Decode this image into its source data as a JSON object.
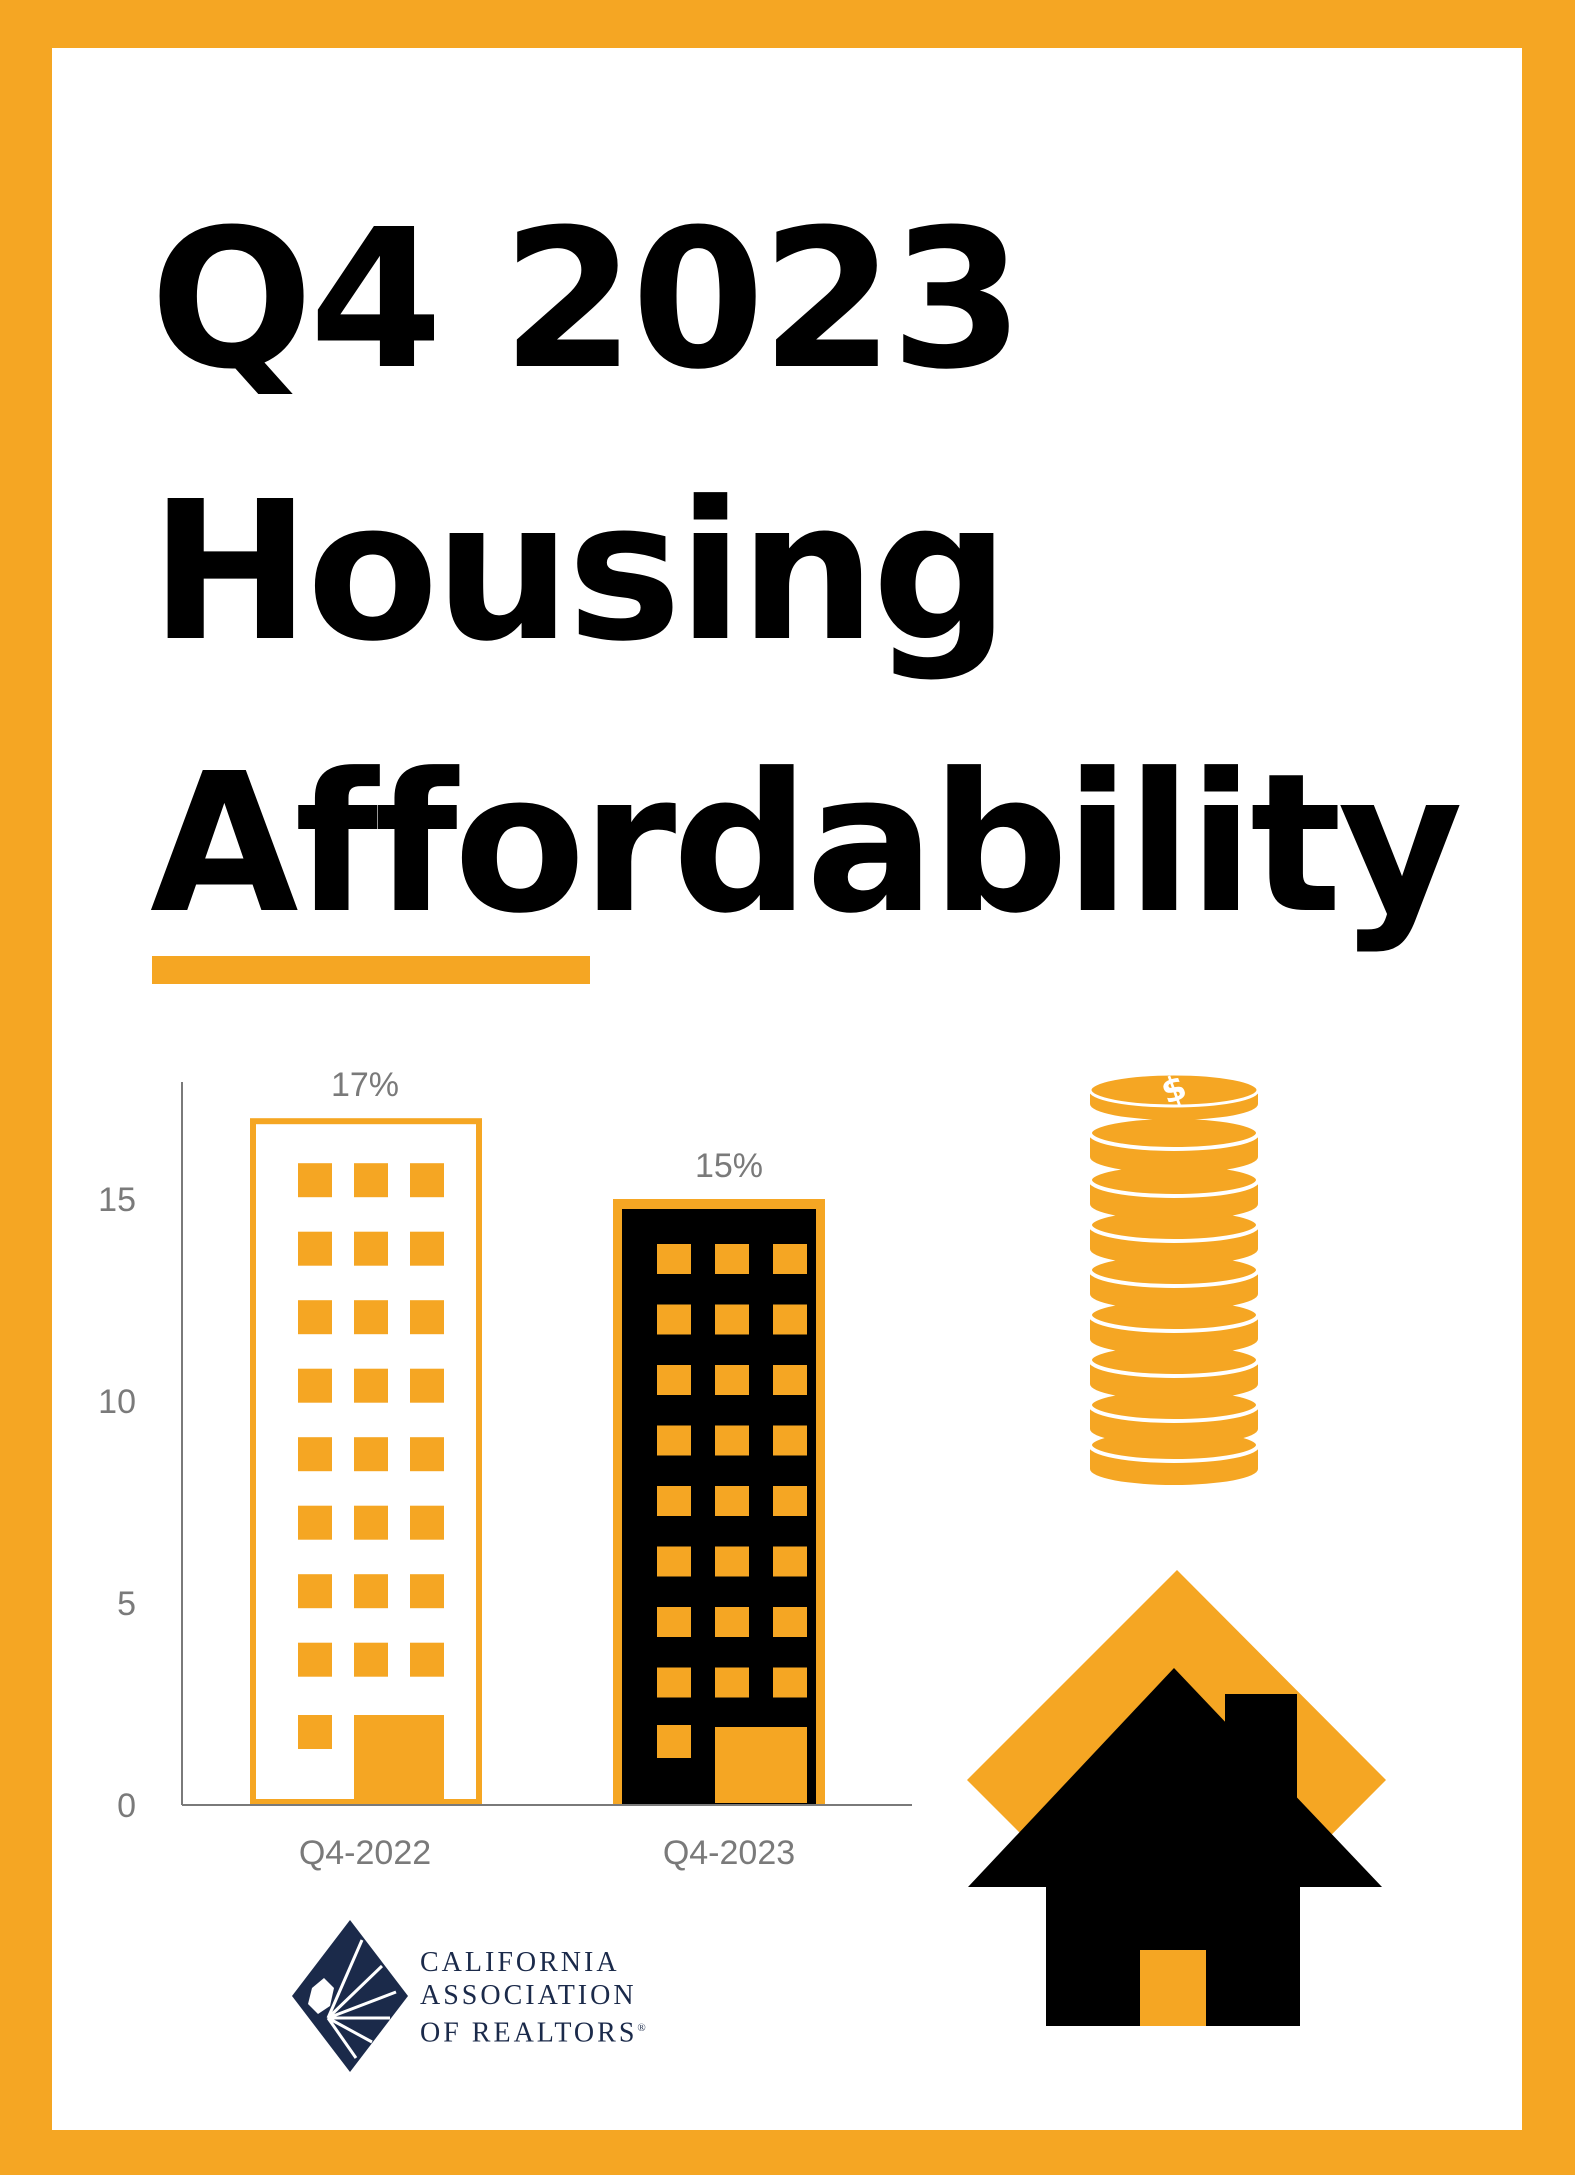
{
  "title": {
    "line1": "Q4 2023",
    "line2": "Housing",
    "line3": "Affordability"
  },
  "colors": {
    "accent": "#F5A623",
    "building_dark": "#000000",
    "text": "#000000",
    "axis_text": "#7A7A7A",
    "logo_navy": "#1B2A4A"
  },
  "chart_data": {
    "type": "bar",
    "categories": [
      "Q4-2022",
      "Q4-2023"
    ],
    "values": [
      17,
      15
    ],
    "data_labels": [
      "17%",
      "15%"
    ],
    "ylim": [
      0,
      17.5
    ],
    "y_ticks": [
      0,
      5,
      10,
      15
    ],
    "grid": false,
    "bar_styles": [
      "white building with orange outline",
      "black building with orange windows"
    ]
  },
  "decorations": {
    "coins_icon": "coin-stack-icon",
    "house_icon": "house-icon"
  },
  "logo": {
    "line1": "CALIFORNIA",
    "line2": "ASSOCIATION",
    "line3": "OF REALTORS",
    "mark": "®"
  }
}
